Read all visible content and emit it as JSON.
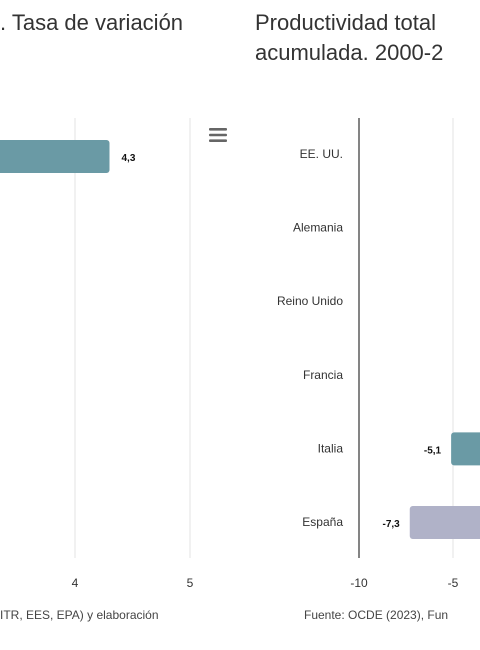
{
  "left_panel": {
    "title": ". Tasa de variación",
    "source": "ITR, EES, EPA) y elaboración"
  },
  "right_panel": {
    "title_line1": "Productividad total",
    "title_line2": "acumulada. 2000-2",
    "source": "Fuente: OCDE (2023), Fun"
  },
  "menu": {
    "icon": "hamburger-menu-icon"
  },
  "colors": {
    "bar_primary": "#6a9aa5",
    "bar_spain": "#b0b2c8",
    "grid": "#e3e3e3",
    "axis": "#333333"
  },
  "chart_data": [
    {
      "type": "bar",
      "orientation": "horizontal",
      "x_ticks": [
        "4",
        "5"
      ],
      "values_visible": [
        {
          "value": 4.3,
          "label": "4,3"
        }
      ],
      "title": "",
      "xlabel": "",
      "ylabel": ""
    },
    {
      "type": "bar",
      "orientation": "horizontal",
      "categories": [
        "EE. UU.",
        "Alemania",
        "Reino Unido",
        "Francia",
        "Italia",
        "España"
      ],
      "values": [
        null,
        null,
        null,
        null,
        -5.1,
        -7.3
      ],
      "value_labels": [
        "",
        "",
        "",
        "",
        "-5,1",
        "-7,3"
      ],
      "x_ticks": [
        "-10",
        "-5"
      ],
      "title": "",
      "xlabel": "",
      "ylabel": ""
    }
  ]
}
